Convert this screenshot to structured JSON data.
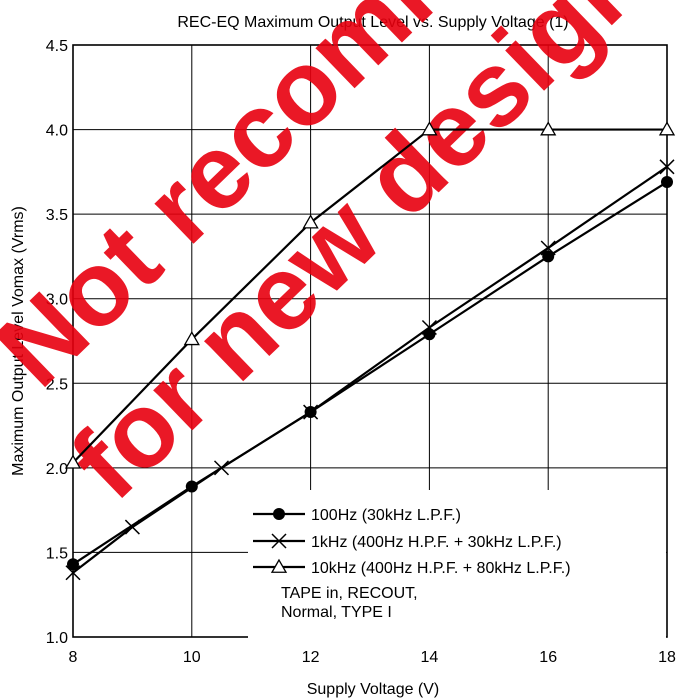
{
  "chart_data": {
    "type": "line",
    "title": "REC-EQ Maximum Output Level vs. Supply Voltage (1)",
    "xlabel": "Supply Voltage  (V)",
    "ylabel": "Maximum Output Level  Vomax  (Vrms)",
    "xlim": [
      8,
      18
    ],
    "ylim": [
      1.0,
      4.5
    ],
    "xticks": [
      8,
      10,
      12,
      14,
      16,
      18
    ],
    "yticks": [
      "1.0",
      "1.5",
      "2.0",
      "2.5",
      "3.0",
      "3.5",
      "4.0",
      "4.5"
    ],
    "grid": true,
    "legend_position": "bottom-right",
    "series": [
      {
        "name": "100Hz (30kHz L.P.F.)",
        "marker": "filled-circle",
        "points": [
          [
            8,
            1.43
          ],
          [
            10,
            1.89
          ],
          [
            12,
            2.33
          ],
          [
            14,
            2.79
          ],
          [
            16,
            3.25
          ],
          [
            18,
            3.69
          ]
        ]
      },
      {
        "name": "1kHz (400Hz H.P.F. + 30kHz L.P.F.)",
        "marker": "x",
        "points": [
          [
            8,
            1.38
          ],
          [
            9,
            1.65
          ],
          [
            10.5,
            2.0
          ],
          [
            12,
            2.33
          ],
          [
            14,
            2.83
          ],
          [
            16,
            3.3
          ],
          [
            18,
            3.78
          ]
        ]
      },
      {
        "name": "10kHz (400Hz H.P.F. + 80kHz L.P.F.)",
        "marker": "open-triangle",
        "points": [
          [
            8,
            2.03
          ],
          [
            10,
            2.76
          ],
          [
            12,
            3.45
          ],
          [
            14,
            4.0
          ],
          [
            16,
            4.0
          ],
          [
            18,
            4.0
          ]
        ]
      }
    ],
    "annotation": [
      "TAPE in, RECOUT,",
      "Normal, TYPE I"
    ]
  },
  "watermark": {
    "lines": [
      "Not recommended",
      "for new designs"
    ],
    "color": "#e8000f"
  }
}
